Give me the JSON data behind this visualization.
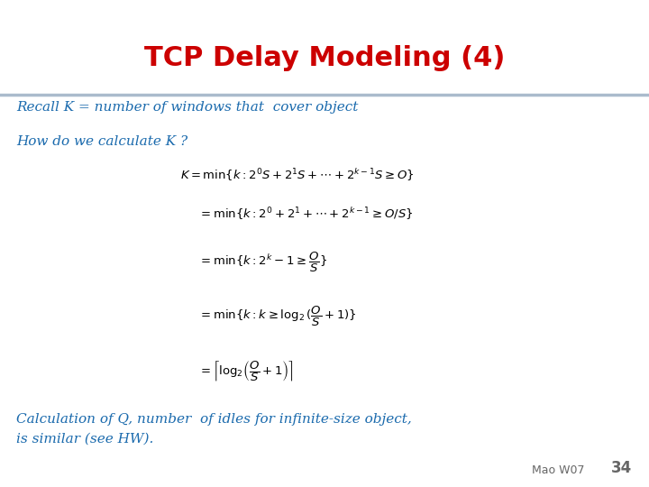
{
  "title": "TCP Delay Modeling (4)",
  "title_color": "#cc0000",
  "title_fontsize": 22,
  "bg_color": "#ffffff",
  "line_color": "#aabbcc",
  "recall_text": "Recall K = number of windows that  cover object",
  "recall_color": "#1a6aad",
  "recall_fontsize": 11,
  "howdo_text": "How do we calculate K ?",
  "howdo_color": "#1a6aad",
  "howdo_fontsize": 11,
  "eq_color": "#000000",
  "eq_fontsize": 9.5,
  "calc_text1": "Calculation of Q, number  of idles for infinite-size object,",
  "calc_text2": "is similar (see HW).",
  "calc_color": "#1a6aad",
  "calc_fontsize": 11,
  "footer_text": "Mao W07",
  "footer_num": "34",
  "footer_color": "#666666",
  "footer_fontsize": 9
}
